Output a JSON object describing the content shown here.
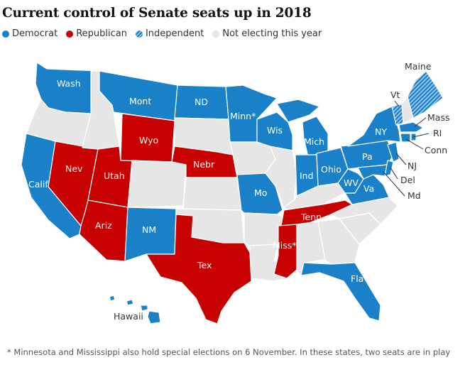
{
  "title": "Current control of Senate seats up in 2018",
  "legend": [
    {
      "label": "Democrat",
      "color": "#1a80c8",
      "pattern": "solid"
    },
    {
      "label": "Republican",
      "color": "#c70000",
      "pattern": "solid"
    },
    {
      "label": "Independent",
      "color": "#1a80c8",
      "pattern": "hatched"
    },
    {
      "label": "Not electing this year",
      "color": "#e6e6e6",
      "pattern": "solid"
    }
  ],
  "colors": {
    "democrat": "#1a80c8",
    "republican": "#c70000",
    "independent": "#1a80c8",
    "none": "#e6e6e6",
    "border": "#ffffff",
    "label_light": "#ffffff",
    "label_dark": "#333333"
  },
  "state_labels": {
    "wash": "Wash",
    "mont": "Mont",
    "nd": "ND",
    "minn": "Minn*",
    "wis": "Wis",
    "mich": "Mich",
    "ny": "NY",
    "vt": "Vt",
    "maine": "Maine",
    "mass": "Mass",
    "ri": "RI",
    "conn": "Conn",
    "nj": "NJ",
    "del": "Del",
    "md": "Md",
    "pa": "Pa",
    "ohio": "Ohio",
    "ind": "Ind",
    "wv": "WV",
    "va": "Va",
    "mo": "Mo",
    "tenn": "Tenn",
    "miss": "Miss*",
    "fla": "Fla",
    "tex": "Tex",
    "nm": "NM",
    "ariz": "Ariz",
    "utah": "Utah",
    "nev": "Nev",
    "calif": "Calif",
    "wyo": "Wyo",
    "nebr": "Nebr",
    "hawaii": "Hawaii"
  },
  "footnote": "* Minnesota and Mississippi also hold special elections on 6 November. In these states, two seats are in play"
}
